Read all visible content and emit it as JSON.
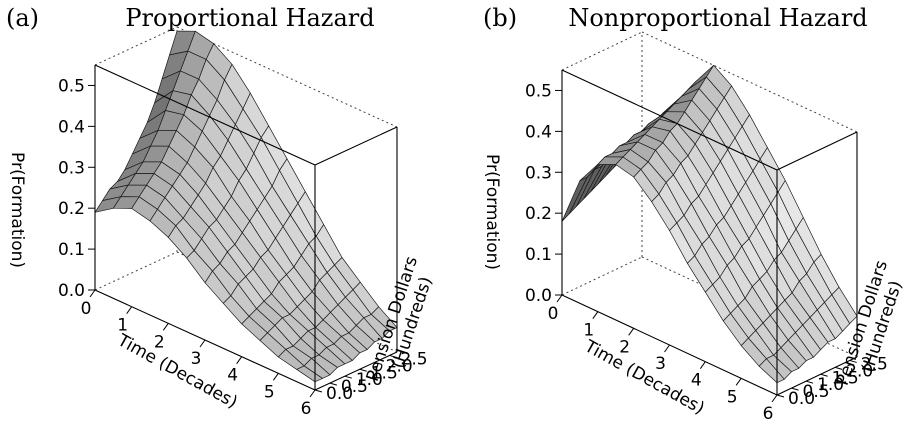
{
  "chart_data": [
    {
      "type": "surface",
      "panel_label": "(a)",
      "title": "Proportional Hazard",
      "xlabel": "Time (Decades)",
      "ylabel": "Pension Dollars (Hundreds)",
      "zlabel": "Pr(Formation)",
      "xlim": [
        0,
        6
      ],
      "ylim": [
        0,
        2.75
      ],
      "zlim": [
        0,
        0.55
      ],
      "x_ticks": [
        "0",
        "1",
        "2",
        "3",
        "4",
        "5",
        "6"
      ],
      "y_ticks": [
        "0.0",
        "0.5",
        "1.0",
        "1.5",
        "2.0",
        "2.5"
      ],
      "z_ticks": [
        "0.0",
        "0.1",
        "0.2",
        "0.3",
        "0.4",
        "0.5"
      ],
      "x_grid": [
        0,
        0.5,
        1,
        1.5,
        2,
        2.5,
        3,
        3.5,
        4,
        4.5,
        5,
        5.5,
        6
      ],
      "y_grid": [
        0,
        0.25,
        0.5,
        0.75,
        1.0,
        1.25,
        1.5,
        1.75,
        2.0,
        2.25,
        2.5,
        2.75
      ],
      "z": [
        [
          0.19,
          0.21,
          0.23,
          0.24,
          0.26,
          0.29,
          0.32,
          0.35,
          0.39,
          0.44,
          0.49,
          0.54
        ],
        [
          0.22,
          0.24,
          0.26,
          0.28,
          0.3,
          0.33,
          0.36,
          0.4,
          0.44,
          0.48,
          0.52,
          0.56
        ],
        [
          0.24,
          0.26,
          0.28,
          0.3,
          0.32,
          0.35,
          0.38,
          0.41,
          0.45,
          0.48,
          0.52,
          0.55
        ],
        [
          0.23,
          0.25,
          0.27,
          0.29,
          0.31,
          0.33,
          0.36,
          0.39,
          0.42,
          0.45,
          0.49,
          0.52
        ],
        [
          0.21,
          0.23,
          0.24,
          0.26,
          0.28,
          0.3,
          0.33,
          0.35,
          0.38,
          0.41,
          0.44,
          0.47
        ],
        [
          0.18,
          0.19,
          0.21,
          0.23,
          0.24,
          0.26,
          0.28,
          0.31,
          0.33,
          0.36,
          0.39,
          0.41
        ],
        [
          0.14,
          0.16,
          0.17,
          0.19,
          0.2,
          0.22,
          0.24,
          0.26,
          0.28,
          0.3,
          0.33,
          0.35
        ],
        [
          0.11,
          0.12,
          0.14,
          0.15,
          0.16,
          0.18,
          0.19,
          0.21,
          0.23,
          0.25,
          0.27,
          0.29
        ],
        [
          0.08,
          0.09,
          0.1,
          0.11,
          0.12,
          0.14,
          0.15,
          0.16,
          0.18,
          0.2,
          0.21,
          0.23
        ],
        [
          0.06,
          0.07,
          0.08,
          0.09,
          0.09,
          0.1,
          0.11,
          0.12,
          0.14,
          0.15,
          0.16,
          0.17
        ],
        [
          0.04,
          0.05,
          0.05,
          0.06,
          0.07,
          0.07,
          0.08,
          0.09,
          0.1,
          0.11,
          0.12,
          0.13
        ],
        [
          0.03,
          0.03,
          0.04,
          0.04,
          0.05,
          0.05,
          0.06,
          0.06,
          0.07,
          0.08,
          0.08,
          0.09
        ],
        [
          0.02,
          0.02,
          0.02,
          0.03,
          0.03,
          0.03,
          0.04,
          0.04,
          0.05,
          0.05,
          0.06,
          0.06
        ]
      ]
    },
    {
      "type": "surface",
      "panel_label": "(b)",
      "title": "Nonproportional Hazard",
      "xlabel": "Time (Decades)",
      "ylabel": "Pension Dollars (Hundreds)",
      "zlabel": "Pr(Formation)",
      "xlim": [
        0,
        6
      ],
      "ylim": [
        0,
        2.75
      ],
      "zlim": [
        0,
        0.55
      ],
      "x_ticks": [
        "0",
        "1",
        "2",
        "3",
        "4",
        "5",
        "6"
      ],
      "y_ticks": [
        "0.0",
        "0.5",
        "1.0",
        "1.5",
        "2.0",
        "2.5"
      ],
      "z_ticks": [
        "0.0",
        "0.1",
        "0.2",
        "0.3",
        "0.4",
        "0.5"
      ],
      "x_grid": [
        0,
        0.5,
        1,
        1.5,
        2,
        2.5,
        3,
        3.5,
        4,
        4.5,
        5,
        5.5,
        6
      ],
      "y_grid": [
        0,
        0.25,
        0.5,
        0.75,
        1.0,
        1.25,
        1.5,
        1.75,
        2.0,
        2.25,
        2.5,
        2.75
      ],
      "z": [
        [
          0.18,
          0.19,
          0.2,
          0.21,
          0.22,
          0.23,
          0.24,
          0.25,
          0.26,
          0.27,
          0.28,
          0.29
        ],
        [
          0.3,
          0.3,
          0.31,
          0.31,
          0.32,
          0.32,
          0.33,
          0.33,
          0.34,
          0.34,
          0.35,
          0.35
        ],
        [
          0.36,
          0.37,
          0.37,
          0.38,
          0.38,
          0.39,
          0.39,
          0.4,
          0.4,
          0.41,
          0.41,
          0.42
        ],
        [
          0.38,
          0.39,
          0.4,
          0.41,
          0.42,
          0.43,
          0.44,
          0.45,
          0.46,
          0.47,
          0.48,
          0.49
        ],
        [
          0.37,
          0.38,
          0.39,
          0.41,
          0.42,
          0.44,
          0.45,
          0.47,
          0.49,
          0.51,
          0.53,
          0.55
        ],
        [
          0.33,
          0.34,
          0.36,
          0.37,
          0.39,
          0.4,
          0.42,
          0.44,
          0.46,
          0.48,
          0.5,
          0.52
        ],
        [
          0.28,
          0.29,
          0.3,
          0.32,
          0.33,
          0.35,
          0.37,
          0.39,
          0.41,
          0.43,
          0.45,
          0.47
        ],
        [
          0.22,
          0.23,
          0.25,
          0.26,
          0.28,
          0.29,
          0.31,
          0.33,
          0.35,
          0.37,
          0.39,
          0.41
        ],
        [
          0.17,
          0.18,
          0.19,
          0.21,
          0.22,
          0.24,
          0.25,
          0.27,
          0.29,
          0.31,
          0.33,
          0.35
        ],
        [
          0.12,
          0.13,
          0.14,
          0.15,
          0.17,
          0.18,
          0.19,
          0.21,
          0.22,
          0.24,
          0.26,
          0.28
        ],
        [
          0.08,
          0.09,
          0.1,
          0.11,
          0.12,
          0.13,
          0.14,
          0.15,
          0.17,
          0.18,
          0.2,
          0.21
        ],
        [
          0.05,
          0.06,
          0.06,
          0.07,
          0.08,
          0.09,
          0.1,
          0.11,
          0.12,
          0.13,
          0.14,
          0.15
        ],
        [
          0.03,
          0.03,
          0.04,
          0.04,
          0.05,
          0.05,
          0.06,
          0.07,
          0.07,
          0.08,
          0.09,
          0.1
        ]
      ]
    }
  ]
}
